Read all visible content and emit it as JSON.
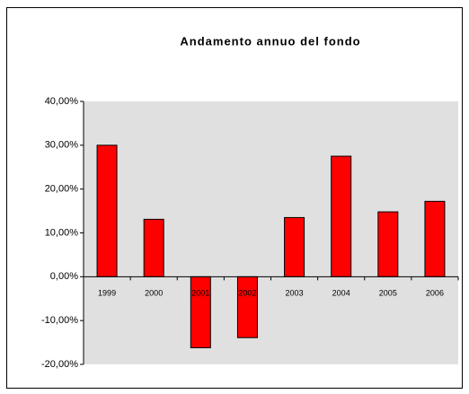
{
  "chart_data": {
    "type": "bar",
    "title": "Andamento annuo del fondo",
    "categories": [
      "1999",
      "2000",
      "2001",
      "2002",
      "2003",
      "2004",
      "2005",
      "2006"
    ],
    "values": [
      30.0,
      13.1,
      -16.2,
      -13.9,
      13.5,
      27.5,
      14.8,
      17.2
    ],
    "color": "#ff0000",
    "ylim": [
      -20,
      40
    ],
    "yticks": [
      {
        "value": -20,
        "label": "-20,00%"
      },
      {
        "value": -10,
        "label": "-10,00%"
      },
      {
        "value": 0,
        "label": "0,00%"
      },
      {
        "value": 10,
        "label": "10,00%"
      },
      {
        "value": 20,
        "label": "20,00%"
      },
      {
        "value": 30,
        "label": "30,00%"
      },
      {
        "value": 40,
        "label": "40,00%"
      }
    ],
    "grid": false
  }
}
